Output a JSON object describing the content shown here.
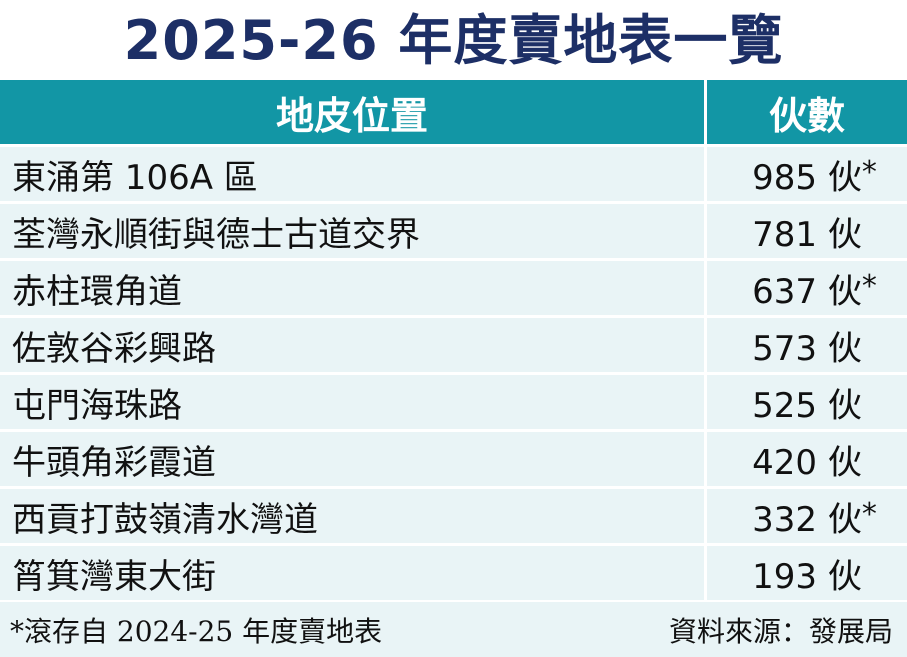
{
  "title": "2025-26 年度賣地表一覽",
  "table": {
    "headers": {
      "location": "地皮位置",
      "units": "伙數"
    },
    "rows": [
      {
        "location": "東涌第 106A 區",
        "units": "985 伙",
        "mark": "*"
      },
      {
        "location": "荃灣永順街與德士古道交界",
        "units": "781 伙",
        "mark": ""
      },
      {
        "location": "赤柱環角道",
        "units": "637 伙",
        "mark": "*"
      },
      {
        "location": "佐敦谷彩興路",
        "units": "573 伙",
        "mark": ""
      },
      {
        "location": "屯門海珠路",
        "units": "525 伙",
        "mark": ""
      },
      {
        "location": "牛頭角彩霞道",
        "units": "420 伙",
        "mark": ""
      },
      {
        "location": "西貢打鼓嶺清水灣道",
        "units": "332 伙",
        "mark": "*"
      },
      {
        "location": "筲箕灣東大街",
        "units": "193 伙",
        "mark": ""
      }
    ]
  },
  "footer": {
    "note": "*滾存自 2024-25 年度賣地表",
    "source": "資料來源：發展局"
  },
  "colors": {
    "title": "#1d2f66",
    "header_bg": "#1296a5",
    "row_bg": "#e9f4f6"
  }
}
